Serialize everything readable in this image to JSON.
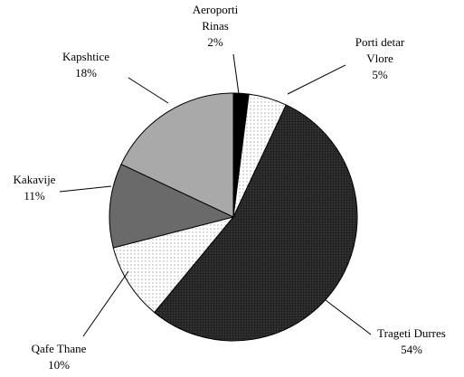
{
  "chart_data": {
    "type": "pie",
    "categories": [
      [
        "Aeroporti",
        "Rinas"
      ],
      [
        "Porti detar",
        "Vlore"
      ],
      [
        "Trageti Durres"
      ],
      [
        "Qafe Thane"
      ],
      [
        "Kakavije"
      ],
      [
        "Kapshtice"
      ]
    ],
    "values": [
      2,
      5,
      54,
      10,
      11,
      18
    ],
    "value_labels": [
      "2%",
      "5%",
      "54%",
      "10%",
      "11%",
      "18%"
    ],
    "colors": [
      "#000000",
      "#f2f2f2",
      "#2b2b2b",
      "#ececec",
      "#6a6a6a",
      "#a9a9a9"
    ]
  }
}
